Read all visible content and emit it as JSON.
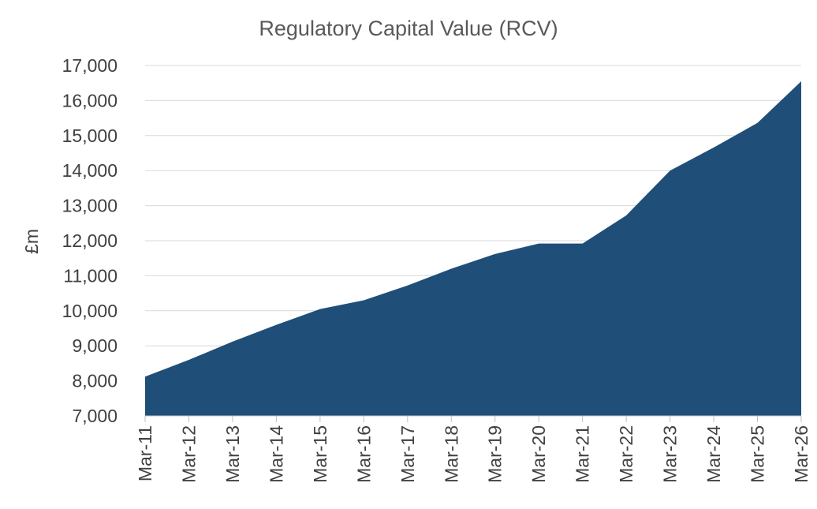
{
  "chart_data": {
    "type": "area",
    "title": "Regulatory Capital Value (RCV)",
    "xlabel": "",
    "ylabel": "£m",
    "categories": [
      "Mar-11",
      "Mar-12",
      "Mar-13",
      "Mar-14",
      "Mar-15",
      "Mar-16",
      "Mar-17",
      "Mar-18",
      "Mar-19",
      "Mar-20",
      "Mar-21",
      "Mar-22",
      "Mar-23",
      "Mar-24",
      "Mar-25",
      "Mar-26"
    ],
    "values": [
      8120,
      8600,
      9120,
      9600,
      10050,
      10300,
      10720,
      11200,
      11620,
      11920,
      11920,
      12720,
      14000,
      14660,
      15360,
      16550
    ],
    "ylim": [
      7000,
      17000
    ],
    "yticks": [
      7000,
      8000,
      9000,
      10000,
      11000,
      12000,
      13000,
      14000,
      15000,
      16000,
      17000
    ],
    "grid": true,
    "legend": "none",
    "colors": {
      "area": "#1f4e79",
      "grid": "#d9d9d9",
      "text": "#404040",
      "title": "#595959"
    }
  }
}
